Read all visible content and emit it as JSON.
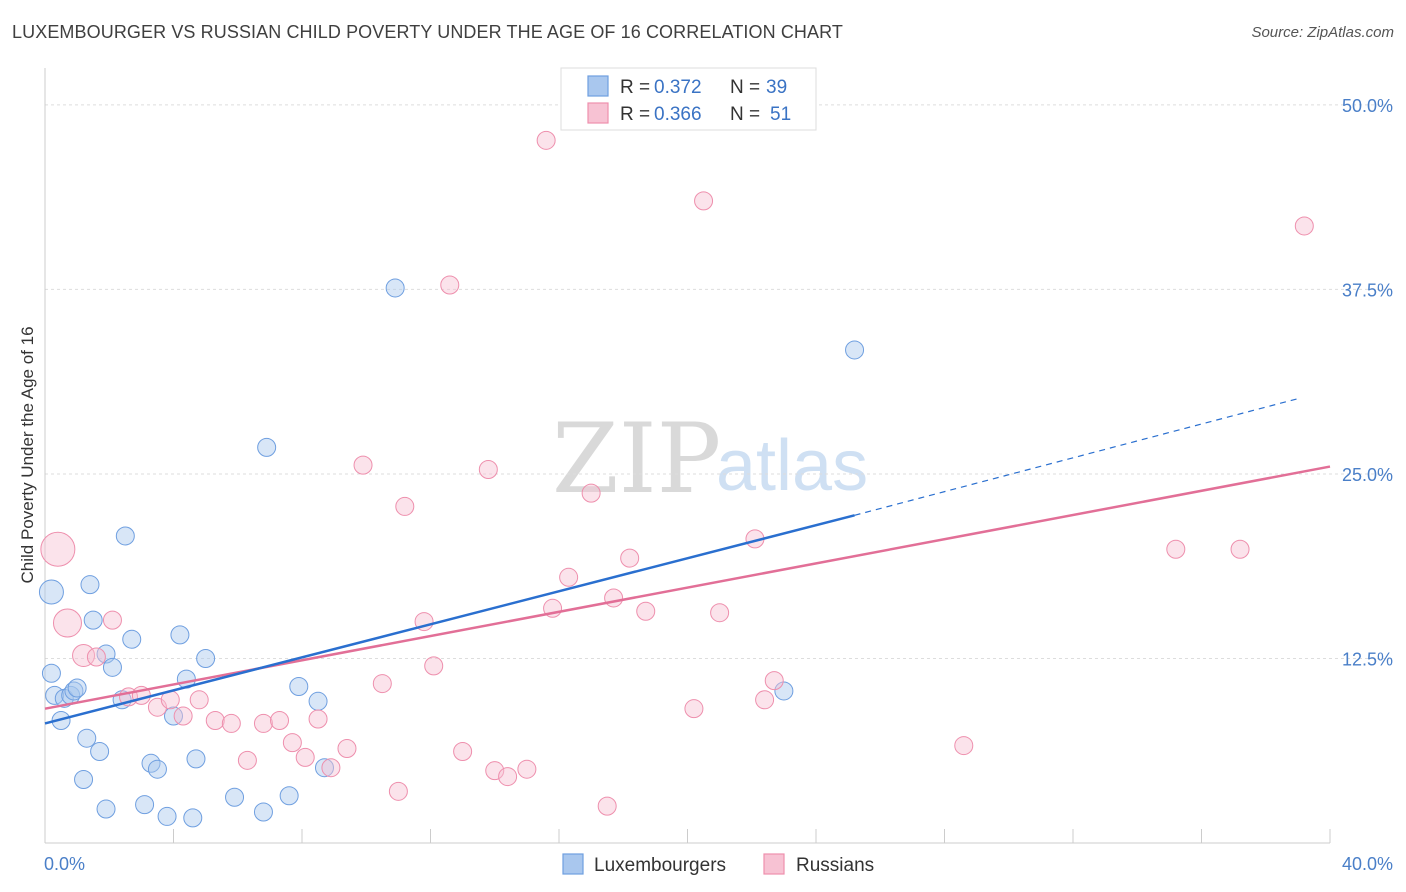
{
  "chart_data": {
    "type": "scatter",
    "title": "LUXEMBOURGER VS RUSSIAN CHILD POVERTY UNDER THE AGE OF 16 CORRELATION CHART",
    "source": "Source: ZipAtlas.com",
    "xlabel": "",
    "ylabel": "Child Poverty Under the Age of 16",
    "xlim": [
      0,
      40
    ],
    "ylim": [
      0,
      52.5
    ],
    "x_tick_labels": [
      "0.0%",
      "40.0%"
    ],
    "y_ticks": [
      12.5,
      25.0,
      37.5,
      50.0
    ],
    "y_tick_labels": [
      "12.5%",
      "25.0%",
      "37.5%",
      "50.0%"
    ],
    "watermark": {
      "zip": "ZIP",
      "atlas": "atlas"
    },
    "legend": {
      "r_label": "R =",
      "n_label": "N =",
      "entries": [
        {
          "r": "0.372",
          "n": "39"
        },
        {
          "r": "0.366",
          "n": "51"
        }
      ]
    },
    "series": [
      {
        "name": "Luxembourgers",
        "color": "#6f9fe0",
        "fill": "#a9c7ee",
        "line_color": "#2a6fcf",
        "trend": {
          "x0": 0,
          "y0": 8.1,
          "x1": 25.2,
          "y1": 22.2,
          "dash_x1": 39.0,
          "dash_y1": 30.1
        },
        "points": [
          [
            0.2,
            17.0,
            22
          ],
          [
            0.2,
            11.5,
            16
          ],
          [
            0.3,
            10.0,
            16
          ],
          [
            0.5,
            8.3,
            16
          ],
          [
            0.6,
            9.8,
            16
          ],
          [
            0.8,
            10.0,
            16
          ],
          [
            0.9,
            10.3,
            16
          ],
          [
            1.0,
            10.5,
            16
          ],
          [
            1.2,
            4.3,
            16
          ],
          [
            1.3,
            7.1,
            16
          ],
          [
            1.4,
            17.5,
            16
          ],
          [
            1.5,
            15.1,
            16
          ],
          [
            1.7,
            6.2,
            16
          ],
          [
            1.9,
            2.3,
            16
          ],
          [
            1.9,
            12.8,
            16
          ],
          [
            2.1,
            11.9,
            16
          ],
          [
            2.4,
            9.7,
            16
          ],
          [
            2.5,
            20.8,
            16
          ],
          [
            2.7,
            13.8,
            16
          ],
          [
            3.1,
            2.6,
            16
          ],
          [
            3.3,
            5.4,
            16
          ],
          [
            3.5,
            5.0,
            16
          ],
          [
            3.8,
            1.8,
            16
          ],
          [
            4.0,
            8.6,
            16
          ],
          [
            4.2,
            14.1,
            16
          ],
          [
            4.4,
            11.1,
            16
          ],
          [
            4.6,
            1.7,
            16
          ],
          [
            4.7,
            5.7,
            16
          ],
          [
            5.0,
            12.5,
            16
          ],
          [
            5.9,
            3.1,
            16
          ],
          [
            6.8,
            2.1,
            16
          ],
          [
            6.9,
            26.8,
            16
          ],
          [
            7.6,
            3.2,
            16
          ],
          [
            7.9,
            10.6,
            16
          ],
          [
            8.5,
            9.6,
            16
          ],
          [
            8.7,
            5.1,
            16
          ],
          [
            10.9,
            37.6,
            16
          ],
          [
            23.0,
            10.3,
            16
          ],
          [
            25.2,
            33.4,
            16
          ]
        ]
      },
      {
        "name": "Russians",
        "color": "#ee8fad",
        "fill": "#f7c2d3",
        "line_color": "#e26f97",
        "trend": {
          "x0": 0,
          "y0": 9.1,
          "x1": 40.0,
          "y1": 25.5
        },
        "points": [
          [
            0.4,
            19.9,
            32
          ],
          [
            0.7,
            14.9,
            26
          ],
          [
            1.2,
            12.7,
            20
          ],
          [
            1.6,
            12.6,
            16
          ],
          [
            2.1,
            15.1,
            16
          ],
          [
            2.6,
            9.9,
            16
          ],
          [
            3.0,
            10.0,
            16
          ],
          [
            3.5,
            9.2,
            16
          ],
          [
            3.9,
            9.7,
            16
          ],
          [
            4.3,
            8.6,
            16
          ],
          [
            4.8,
            9.7,
            16
          ],
          [
            5.3,
            8.3,
            16
          ],
          [
            5.8,
            8.1,
            16
          ],
          [
            6.3,
            5.6,
            16
          ],
          [
            6.8,
            8.1,
            16
          ],
          [
            7.3,
            8.3,
            16
          ],
          [
            7.7,
            6.8,
            16
          ],
          [
            8.1,
            5.8,
            16
          ],
          [
            8.5,
            8.4,
            16
          ],
          [
            8.9,
            5.1,
            16
          ],
          [
            9.4,
            6.4,
            16
          ],
          [
            9.9,
            25.6,
            16
          ],
          [
            10.5,
            10.8,
            16
          ],
          [
            11.0,
            3.5,
            16
          ],
          [
            11.2,
            22.8,
            16
          ],
          [
            11.8,
            15.0,
            16
          ],
          [
            12.1,
            12.0,
            16
          ],
          [
            12.6,
            37.8,
            16
          ],
          [
            13.0,
            6.2,
            16
          ],
          [
            13.8,
            25.3,
            16
          ],
          [
            14.0,
            4.9,
            16
          ],
          [
            14.4,
            4.5,
            16
          ],
          [
            15.0,
            5.0,
            16
          ],
          [
            15.6,
            47.6,
            16
          ],
          [
            15.8,
            15.9,
            16
          ],
          [
            16.3,
            18.0,
            16
          ],
          [
            17.0,
            23.7,
            16
          ],
          [
            17.5,
            2.5,
            16
          ],
          [
            17.7,
            16.6,
            16
          ],
          [
            18.2,
            19.3,
            16
          ],
          [
            18.7,
            15.7,
            16
          ],
          [
            20.2,
            9.1,
            16
          ],
          [
            20.5,
            43.5,
            16
          ],
          [
            21.0,
            15.6,
            16
          ],
          [
            22.1,
            20.6,
            16
          ],
          [
            22.4,
            9.7,
            16
          ],
          [
            22.7,
            11.0,
            16
          ],
          [
            28.6,
            6.6,
            16
          ],
          [
            35.2,
            19.9,
            16
          ],
          [
            37.2,
            19.9,
            16
          ],
          [
            39.2,
            41.8,
            16
          ]
        ]
      }
    ]
  }
}
